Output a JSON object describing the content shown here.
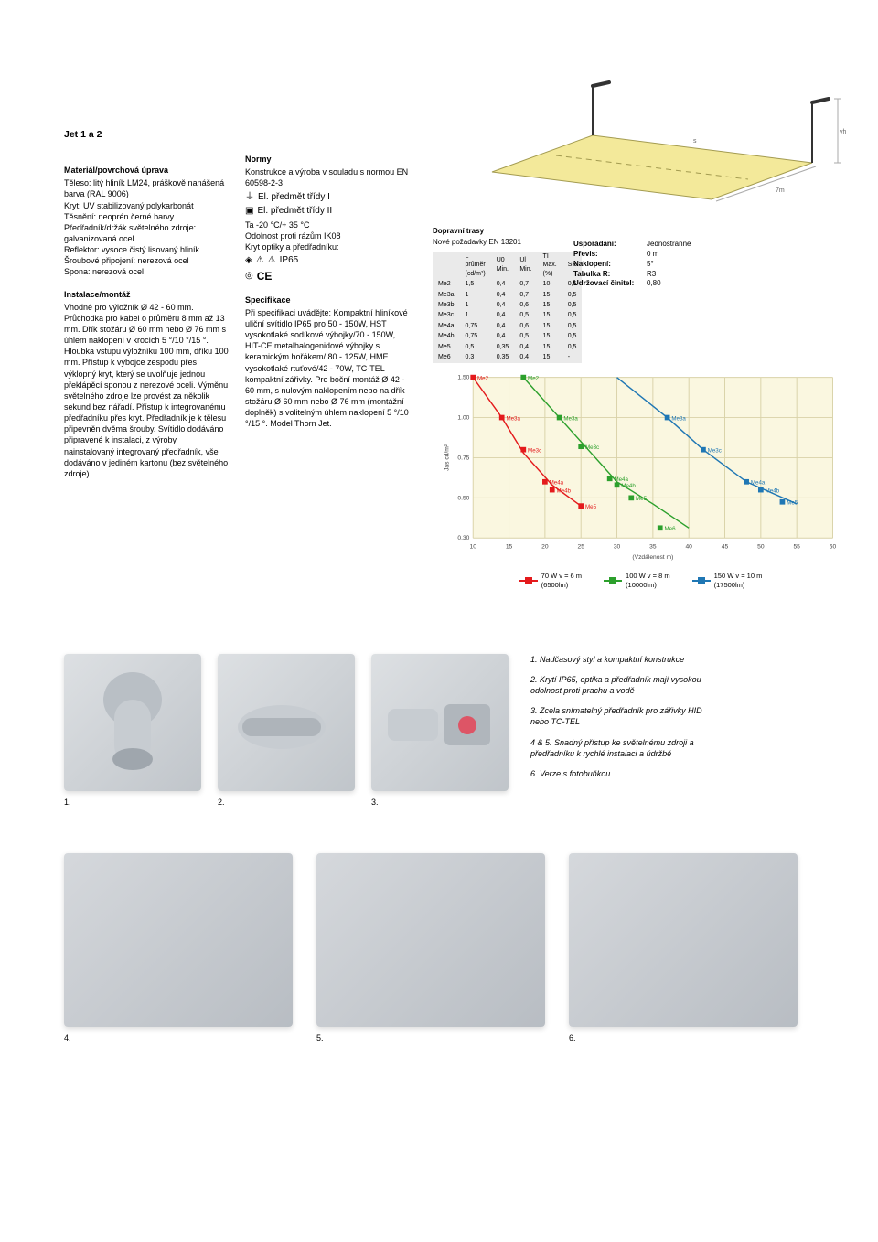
{
  "title": "Jet 1 a 2",
  "col_a": {
    "sec1_head": "Materiál/povrchová úprava",
    "sec1_body": "Těleso: litý hliník LM24, práškově nanášená barva (RAL 9006)\nKryt: UV stabilizovaný polykarbonát\nTěsnění: neoprén černé barvy\nPředřadník/držák světelného zdroje: galvanizovaná ocel\nReflektor: vysoce čistý lisovaný hliník\nŠroubové připojení: nerezová ocel\nSpona: nerezová ocel",
    "sec2_head": "Instalace/montáž",
    "sec2_body": "Vhodné pro výložník\nØ 42 - 60 mm. Průchodka pro kabel o průměru 8 mm až 13 mm. Dřík stožáru Ø 60 mm nebo Ø 76 mm s úhlem naklopení v krocích 5 °/10 °/15 °. Hloubka vstupu výložníku 100 mm, dříku 100 mm. Přístup k výbojce zespodu přes výklopný kryt, který se uvolňuje jednou překlápěcí sponou z nerezové oceli. Výměnu světelného zdroje lze provést za několik sekund bez nářadí. Přístup k integrovanému předřadníku přes kryt. Předřadník je k tělesu připevněn dvěma šrouby. Svítidlo dodáváno připravené k instalaci, z výroby nainstalovaný integrovaný předřadník, vše dodáváno v jediném kartonu (bez světelného zdroje)."
  },
  "col_b": {
    "sec1_head": "Normy",
    "sec1_body": "Konstrukce a výroba v souladu s normou EN 60598-2-3",
    "class1": "El. předmět třídy I",
    "class2": "El. předmět třídy II",
    "ta": "Ta -20 °C/+ 35 °C",
    "ik": "Odolnost proti rázům IK08",
    "ip_label": "Kryt optiky a předřadníku:",
    "ip": "IP65",
    "sec2_head": "Specifikace",
    "sec2_body": "Při specifikaci uvádějte: Kompaktní hliníkové uliční svítidlo IP65 pro 50 - 150W, HST vysokotlaké sodíkové výbojky/70 - 150W, HIT-CE metalhalogenidové výbojky s keramickým hořákem/ 80 - 125W, HME vysokotlaké rtuťové/42 - 70W, TC-TEL kompaktní zářivky. Pro boční montáž Ø 42 - 60 mm, s nulovým naklopením nebo na dřík stožáru Ø 60 mm nebo Ø 76 mm (montážní doplněk) s volitelným úhlem naklopení 5 °/10 °/15 °. Model Thorn Jet."
  },
  "lane": {
    "s_label": "s",
    "vh_label": "vh",
    "dim": "7m",
    "road_color": "#f3e99a",
    "road_stroke": "#a39b50",
    "lamp_color": "#333333"
  },
  "traffic": {
    "title": "Dopravní trasy",
    "sub": "Nové požadavky EN 13201",
    "table": {
      "headers": [
        "",
        "L průměr (cd/m²)",
        "U0 Min.",
        "Ul Min.",
        "TI Max. (%)",
        "SR"
      ],
      "rows": [
        [
          "Me2",
          "1,5",
          "0,4",
          "0,7",
          "10",
          "0,5"
        ],
        [
          "Me3a",
          "1",
          "0,4",
          "0,7",
          "15",
          "0,5"
        ],
        [
          "Me3b",
          "1",
          "0,4",
          "0,6",
          "15",
          "0,5"
        ],
        [
          "Me3c",
          "1",
          "0,4",
          "0,5",
          "15",
          "0,5"
        ],
        [
          "Me4a",
          "0,75",
          "0,4",
          "0,6",
          "15",
          "0,5"
        ],
        [
          "Me4b",
          "0,75",
          "0,4",
          "0,5",
          "15",
          "0,5"
        ],
        [
          "Me5",
          "0,5",
          "0,35",
          "0,4",
          "15",
          "0,5"
        ],
        [
          "Me6",
          "0,3",
          "0,35",
          "0,4",
          "15",
          "-"
        ]
      ]
    }
  },
  "layout": {
    "rows": [
      [
        "Uspořádání:",
        "Jednostranné"
      ],
      [
        "Převis:",
        "0 m"
      ],
      [
        "Naklopení:",
        "5°"
      ],
      [
        "Tabulka R:",
        "R3"
      ],
      [
        "Udržovací činitel:",
        "0,80"
      ]
    ]
  },
  "chart": {
    "colors": {
      "s70": "#e41a1c",
      "s100": "#2ca02c",
      "s150": "#1f77b4",
      "grid": "#d9d2a8",
      "bg": "#faf7e0",
      "axis": "#666666"
    },
    "x_ticks": [
      10,
      15,
      20,
      25,
      30,
      35,
      40,
      45,
      50,
      55,
      60
    ],
    "y_ticks": [
      0.3,
      0.5,
      0.75,
      1.0,
      1.5
    ],
    "y_label": "Jas cd/m²",
    "x_label": "(Vzdálenost m)",
    "labels": [
      "Me2",
      "Me3a",
      "Me3c",
      "Me4a",
      "Me4b",
      "Me5",
      "Me6"
    ],
    "series": [
      {
        "name": "70 W v = 6 m (6500lm)",
        "color": "#e41a1c",
        "points": [
          [
            10,
            1.5
          ],
          [
            14,
            1.0
          ],
          [
            17,
            0.78
          ],
          [
            21,
            0.58
          ],
          [
            25,
            0.46
          ]
        ],
        "markers": [
          [
            10,
            1.5,
            "Me2"
          ],
          [
            14,
            1.0,
            "Me3a"
          ],
          [
            17,
            0.8,
            "Me3c"
          ],
          [
            20,
            0.6,
            "Me4a"
          ],
          [
            21,
            0.55,
            "Me4b"
          ],
          [
            25,
            0.46,
            "Me5"
          ]
        ]
      },
      {
        "name": "100 W v = 8 m (10000lm)",
        "color": "#2ca02c",
        "points": [
          [
            17,
            1.5
          ],
          [
            22,
            1.0
          ],
          [
            26,
            0.8
          ],
          [
            30,
            0.6
          ],
          [
            35,
            0.47
          ],
          [
            40,
            0.35
          ]
        ],
        "markers": [
          [
            17,
            1.5,
            "Me2"
          ],
          [
            22,
            1.0,
            "Me3a"
          ],
          [
            25,
            0.82,
            "Me3c"
          ],
          [
            29,
            0.62,
            "Me4a"
          ],
          [
            30,
            0.58,
            "Me4b"
          ],
          [
            32,
            0.5,
            "Me5"
          ],
          [
            36,
            0.35,
            "Me6"
          ]
        ]
      },
      {
        "name": "150 W v = 10 m (17500lm)",
        "color": "#1f77b4",
        "points": [
          [
            30,
            1.5
          ],
          [
            37,
            1.0
          ],
          [
            42,
            0.8
          ],
          [
            48,
            0.6
          ],
          [
            55,
            0.47
          ]
        ],
        "markers": [
          [
            37,
            1.0,
            "Me3a"
          ],
          [
            42,
            0.8,
            "Me3c"
          ],
          [
            48,
            0.6,
            "Me4a"
          ],
          [
            50,
            0.55,
            "Me4b"
          ],
          [
            53,
            0.48,
            "Me5"
          ]
        ]
      }
    ]
  },
  "legend": [
    {
      "color": "#e41a1c",
      "line1": "70 W v = 6 m",
      "line2": "(6500lm)"
    },
    {
      "color": "#2ca02c",
      "line1": "100 W v = 8 m",
      "line2": "(10000lm)"
    },
    {
      "color": "#1f77b4",
      "line1": "150 W v = 10 m",
      "line2": "(17500lm)"
    }
  ],
  "features": [
    "1. Nadčasový styl a kompaktní konstrukce",
    "2. Krytí IP65, optika a předřadník mají vysokou odolnost proti prachu a vodě",
    "3. Zcela snímatelný předřadník pro zářivky HID nebo TC-TEL",
    "4 & 5. Snadný přístup ke světelnému zdroji a předřadníku k rychlé instalaci a údržbě",
    "6. Verze s fotobuňkou"
  ],
  "photo_nums": [
    "1.",
    "2.",
    "3.",
    "4.",
    "5.",
    "6."
  ]
}
